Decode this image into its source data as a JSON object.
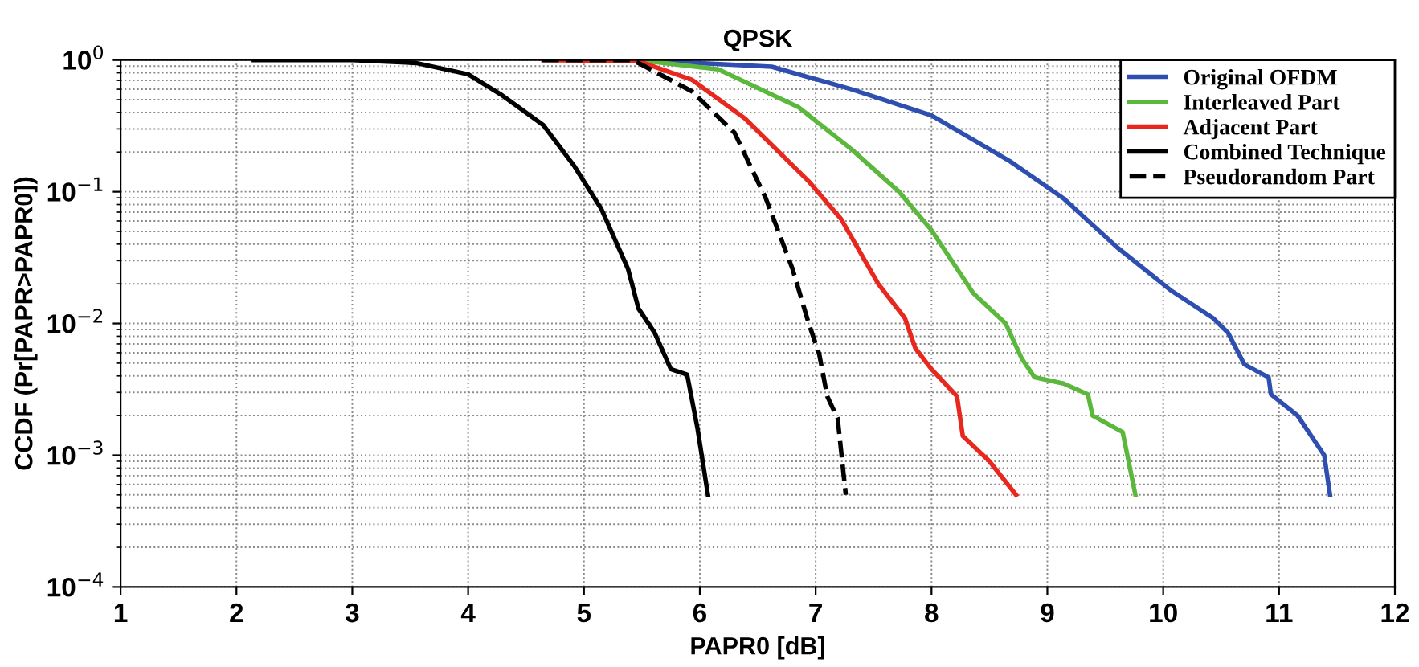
{
  "chart_data": {
    "type": "line",
    "title": "QPSK",
    "xlabel": "PAPR0 [dB]",
    "ylabel": "CCDF (Pr[PAPR>PAPR0])",
    "log": "y",
    "grid": true,
    "legend": "top right",
    "xlim": [
      1,
      12
    ],
    "xticks": [
      1,
      2,
      3,
      4,
      5,
      6,
      7,
      8,
      9,
      10,
      11,
      12
    ],
    "ylim": [
      0.0001,
      1
    ],
    "yticks": [
      {
        "value": 0.0001,
        "label": "10$^{−4}$"
      },
      {
        "value": 0.001,
        "label": "10$^{−3}$"
      },
      {
        "value": 0.01,
        "label": "10$^{−2}$"
      },
      {
        "value": 0.1,
        "label": "10$^{−1}$"
      },
      {
        "value": 1,
        "label": "10$^{0}$"
      }
    ],
    "series": [
      {
        "name": "Original OFDM",
        "color": "#2e4fb0",
        "line_style": "solid",
        "x": [
          5.47,
          6.62,
          7.31,
          8.0,
          8.68,
          9.14,
          9.6,
          10.06,
          10.43,
          10.56,
          10.7,
          10.91,
          10.93,
          11.16,
          11.39,
          11.44
        ],
        "values": [
          1,
          0.89,
          0.6,
          0.38,
          0.17,
          0.089,
          0.038,
          0.018,
          0.011,
          0.0085,
          0.0049,
          0.0039,
          0.0029,
          0.002,
          0.001,
          0.0005
        ]
      },
      {
        "name": "Interleaved Part",
        "color": "#5cb83c",
        "line_style": "solid",
        "x": [
          5.47,
          6.16,
          6.85,
          7.31,
          7.72,
          8.0,
          8.36,
          8.64,
          8.78,
          8.89,
          9.14,
          9.35,
          9.39,
          9.65,
          9.76
        ],
        "values": [
          1,
          0.85,
          0.44,
          0.21,
          0.1,
          0.051,
          0.017,
          0.01,
          0.0054,
          0.0039,
          0.0035,
          0.0029,
          0.002,
          0.0015,
          0.0005
        ]
      },
      {
        "name": "Adjacent Part",
        "color": "#e8281e",
        "line_style": "solid",
        "x": [
          4.65,
          5.47,
          5.93,
          6.39,
          6.94,
          7.22,
          7.54,
          7.77,
          7.86,
          8.0,
          8.22,
          8.27,
          8.5,
          8.73
        ],
        "values": [
          1,
          0.98,
          0.71,
          0.36,
          0.12,
          0.062,
          0.02,
          0.011,
          0.0065,
          0.0045,
          0.0028,
          0.0014,
          0.0009,
          0.0005
        ]
      },
      {
        "name": "Combined Technique",
        "color": "#000000",
        "line_style": "solid",
        "x": [
          2.15,
          3.0,
          3.55,
          4.0,
          4.28,
          4.65,
          4.92,
          5.15,
          5.38,
          5.47,
          5.61,
          5.75,
          5.89,
          5.98,
          6.07
        ],
        "values": [
          1,
          1,
          0.95,
          0.78,
          0.55,
          0.32,
          0.155,
          0.074,
          0.026,
          0.013,
          0.0085,
          0.0045,
          0.0041,
          0.0016,
          0.0005
        ]
      },
      {
        "name": "Pseudorandom Part",
        "color": "#000000",
        "line_style": "dashed",
        "x": [
          4.64,
          5.4,
          5.47,
          5.93,
          6.3,
          6.57,
          6.8,
          6.94,
          7.03,
          7.1,
          7.19,
          7.26
        ],
        "values": [
          1,
          1,
          0.95,
          0.58,
          0.28,
          0.089,
          0.026,
          0.01,
          0.0059,
          0.0028,
          0.0019,
          0.0005
        ]
      }
    ]
  }
}
